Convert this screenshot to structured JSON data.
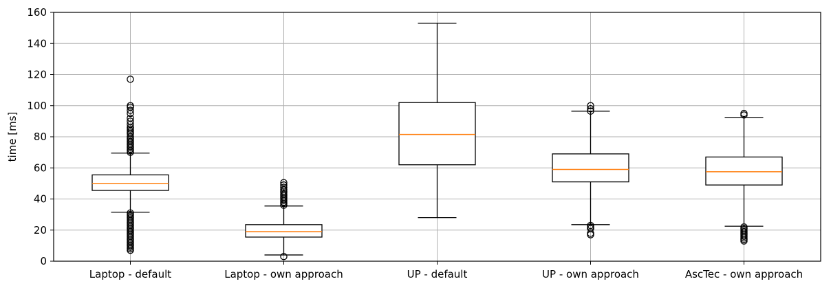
{
  "chart_data": {
    "type": "box",
    "ylabel": "time [ms]",
    "xlabel": "",
    "title": "",
    "ylim": [
      0,
      160
    ],
    "yticks": [
      0,
      20,
      40,
      60,
      80,
      100,
      120,
      140,
      160
    ],
    "grid": true,
    "colors": {
      "box": "#000000",
      "median": "#ff7f0e",
      "grid": "#b0b0b0"
    },
    "categories": [
      "Laptop - default",
      "Laptop - own approach",
      "UP - default",
      "UP - own approach",
      "AscTec - own approach"
    ],
    "boxes": [
      {
        "q1": 45.5,
        "median": 50,
        "q3": 55.5,
        "whisker_low": 31.5,
        "whisker_high": 69.5,
        "outliers": [
          117,
          100,
          99,
          97,
          95,
          92,
          90,
          88,
          86,
          85,
          84,
          83,
          82,
          80,
          79,
          78,
          77,
          76,
          75,
          74,
          73,
          72,
          71,
          70,
          31,
          30,
          29,
          28,
          27,
          26,
          25,
          24,
          23,
          22,
          21,
          20,
          19,
          18,
          17,
          16,
          15,
          14,
          13,
          12,
          11,
          10,
          9,
          8,
          7
        ]
      },
      {
        "q1": 15.5,
        "median": 19,
        "q3": 23.5,
        "whisker_low": 4,
        "whisker_high": 35.5,
        "outliers": [
          50.5,
          49,
          47.5,
          46,
          45,
          44,
          43,
          42,
          41,
          40,
          39,
          38,
          37,
          36,
          3
        ]
      },
      {
        "q1": 62,
        "median": 81.5,
        "q3": 102,
        "whisker_low": 28,
        "whisker_high": 153,
        "outliers": []
      },
      {
        "q1": 51,
        "median": 59,
        "q3": 69,
        "whisker_low": 23.5,
        "whisker_high": 96.5,
        "outliers": [
          100,
          98,
          96.5,
          23,
          22,
          21,
          18,
          17
        ]
      },
      {
        "q1": 49,
        "median": 57.5,
        "q3": 67,
        "whisker_low": 22.5,
        "whisker_high": 92.5,
        "outliers": [
          95,
          94,
          22,
          21,
          20,
          19,
          18,
          17,
          16,
          15,
          14,
          13
        ]
      }
    ]
  }
}
